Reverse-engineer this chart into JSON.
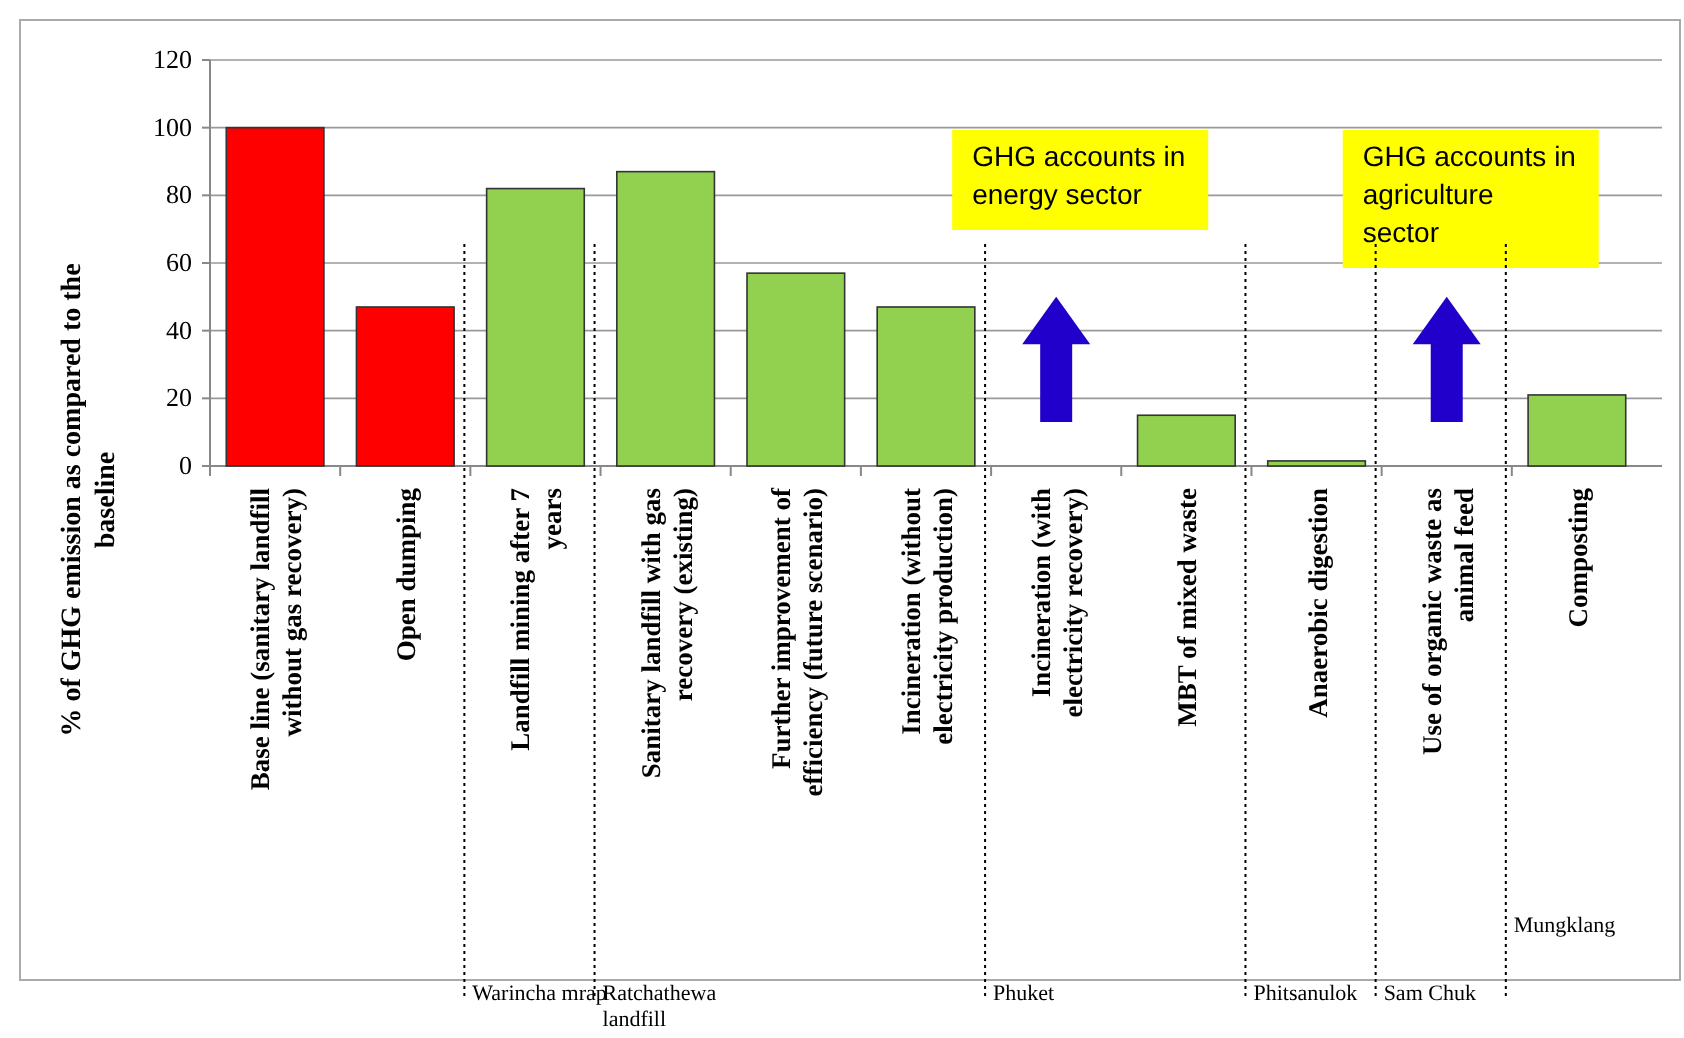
{
  "chart_data": {
    "type": "bar",
    "ylabel": "% of GHG emission as compared to the baseline",
    "categories": [
      "Base line (sanitary landfill without gas recovery)",
      "Open dumping",
      "Landfill mining after 7 years",
      "Sanitary landfill with gas recovery (existing)",
      "Further improvement of efficiency (future scenario)",
      "Incineration (without electricity production)",
      "Incineration (with electricity recovery)",
      "MBT of mixed waste",
      "Anaerobic digestion",
      "Use of organic waste as animal feed",
      "Composting"
    ],
    "values": [
      100,
      47,
      82,
      87,
      57,
      47,
      null,
      15,
      1.5,
      null,
      21
    ],
    "colors": [
      "#ff0000",
      "#ff0000",
      "#92d050",
      "#92d050",
      "#92d050",
      "#92d050",
      null,
      "#92d050",
      "#92d050",
      null,
      "#92d050"
    ],
    "ylim": [
      0,
      120
    ],
    "yticks": [
      0,
      20,
      40,
      60,
      80,
      100,
      120
    ],
    "grid": "y",
    "annotations": [
      "GHG accounts in energy sector",
      "GHG accounts in agriculture sector",
      "Warincha mrap",
      "Ratchathewa landfill",
      "Phuket",
      "Phitsanulok",
      "Sam Chuk",
      "Mungklang"
    ]
  }
}
